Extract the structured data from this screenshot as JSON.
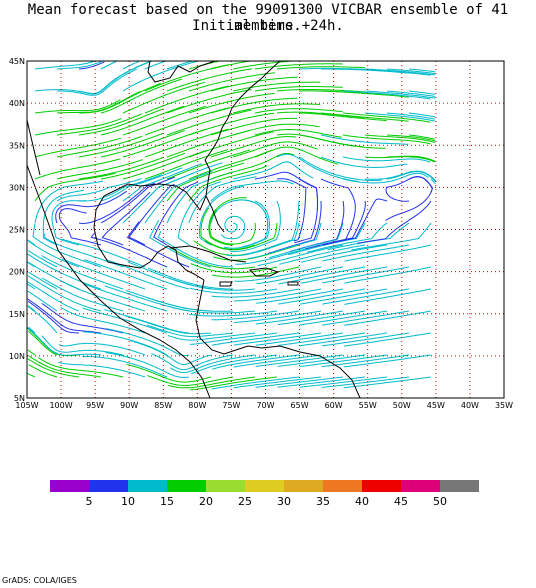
{
  "title": {
    "line1": "Mean forecast based on the 99091300 VICBAR ensemble of 41 members.",
    "line2": "Initial time +24h."
  },
  "map": {
    "lat_labels": [
      "45N",
      "40N",
      "35N",
      "30N",
      "25N",
      "20N",
      "15N",
      "10N",
      "5N"
    ],
    "lon_labels": [
      "105W",
      "100W",
      "95W",
      "90W",
      "85W",
      "80W",
      "75W",
      "70W",
      "65W",
      "60W",
      "55W",
      "50W",
      "45W",
      "40W",
      "35W"
    ],
    "extent": {
      "lon_min": -105,
      "lon_max": -35,
      "lat_min": 5,
      "lat_max": 45
    },
    "data_coverage": {
      "lon_max": -45
    },
    "gridline_color": "#cc0000",
    "vortex_centers": [
      {
        "lon": -75,
        "lat": 25.5,
        "strength": 1.0
      },
      {
        "lon": -67,
        "lat": 33.5,
        "strength": 0.6
      },
      {
        "lon": -47.5,
        "lat": 31,
        "strength": 0.6
      },
      {
        "lon": -100,
        "lat": 27,
        "strength": 0.5
      },
      {
        "lon": -100,
        "lat": 11,
        "strength": 0.5
      },
      {
        "lon": -82,
        "lat": 8.5,
        "strength": 0.5
      },
      {
        "lon": -95,
        "lat": 41,
        "strength": -0.5
      }
    ]
  },
  "legend": {
    "colors": [
      "#9900cc",
      "#2233ee",
      "#00bbcc",
      "#00cc00",
      "#99dd33",
      "#ddcc22",
      "#ddaa22",
      "#ee7722",
      "#ee0000",
      "#dd0077",
      "#777777"
    ],
    "labels": [
      "5",
      "10",
      "15",
      "20",
      "25",
      "30",
      "35",
      "40",
      "45",
      "50"
    ]
  },
  "credit": "GrADS: COLA/IGES"
}
